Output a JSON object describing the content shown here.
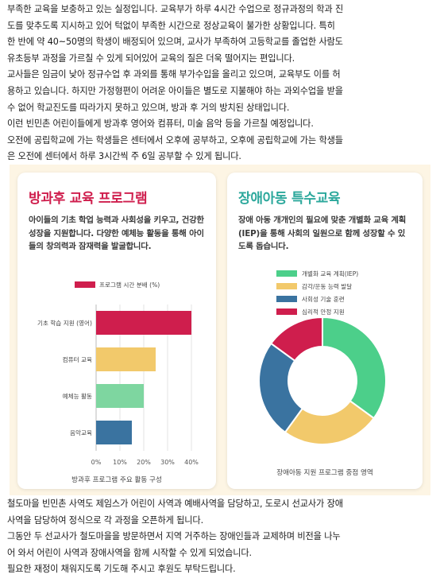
{
  "document": {
    "top_lines": [
      "부족한 교육을 보충하고 있는 실정입니다. 교육부가 하루 4시간 수업으로 정규과정의 학과 진",
      "도를 맞추도록 지시하고 있어 턱없이 부족한 시간으로 정상교육이 불가한 상황입니다. 특히",
      "한 반에 약 40~50명의 학생이 배정되어 있으며, 교사가 부족하여 고등학교를 졸업한 사람도",
      "유초등부 과정을 가르칠 수 있게 되어있어 교육의 질은 더욱 떨어지는 편입니다.",
      "교사들은 임금이 낮아 정규수업 후 과외를 통해 부가수입을 올리고 있으며, 교육부도 이를 허",
      "용하고 있습니다. 하지만 가정형편이 어려운 아이들은 별도로 지불해야 하는 과외수업을 받을",
      "수 없어 학교진도를 따라가지 못하고 있으며, 방과 후 거의 방치된 상태입니다.",
      "이런 빈민촌 어린이들에게 방과후 영어와 컴퓨터, 미술 음악 등을 가르칠 예정입니다.",
      "오전에 공립학교에 가는 학생들은 센터에서 오후에 공부하고, 오후에 공립학교에 가는 학생들",
      "은 오전에 센터에서 하루 3시간씩 주 6일 공부할 수 있게 됩니다."
    ],
    "bottom_lines": [
      "철도마을 빈민촌 사역도 제임스가 어린이 사역과 예배사역을 담당하고, 도로시 선교사가 장애",
      "사역을 담당하여 정식으로 각 과정을 오픈하게 됩니다.",
      "그동안 두 선교사가 철도마을을 방문하면서 지역 거주하는 장애인들과 교제하며 비전을 나누",
      "어 와서 어린이 사역과 장애사역을 함께 시작할 수 있게 되었습니다.",
      "필요한 재정이 채워지도록 기도해 주시고 후원도 부탁드립니다."
    ]
  },
  "left_card": {
    "title": "방과후 교육 프로그램",
    "description": "아이들의 기초 학업 능력과 사회성을 키우고, 건강한 성장을 지원합니다. 다양한 예체능 활동을 통해 아이들의 창의력과 잠재력을 발굴합니다."
  },
  "right_card": {
    "title": "장애아동 특수교육",
    "description": "장애 아동 개개인의 필요에 맞춘 개별화 교육 계획(IEP)을 통해 사회의 일원으로 함께 성장할 수 있도록 돕습니다."
  },
  "chart_data": [
    {
      "type": "bar",
      "orientation": "horizontal",
      "categories": [
        "기초 학습 지원 (영어)",
        "컴퓨터 교육",
        "예체능 활동",
        "음악교육"
      ],
      "values": [
        40,
        25,
        20,
        15
      ],
      "colors": [
        "#cf1e4d",
        "#f2c96b",
        "#7ed6a0",
        "#3a73a0"
      ],
      "legend": [
        "프로그램 시간 분배 (%)"
      ],
      "legend_color": "#cf1e4d",
      "xlim": [
        0,
        40
      ],
      "x_ticks": [
        "0%",
        "10%",
        "20%",
        "30%",
        "40%"
      ],
      "grid": true,
      "caption": "방과후 프로그램 주요 활동 구성"
    },
    {
      "type": "pie",
      "donut": true,
      "labels": [
        "개별화 교육 계획(IEP)",
        "감각/운동 능력 발달",
        "사회성 기술 훈련",
        "심리적 안정 지원"
      ],
      "values": [
        35,
        25,
        25,
        15
      ],
      "colors": [
        "#4ccf8a",
        "#f2c96b",
        "#3a73a0",
        "#cf1e4d"
      ],
      "caption": "장애아동 지원 프로그램 중점 영역"
    }
  ]
}
